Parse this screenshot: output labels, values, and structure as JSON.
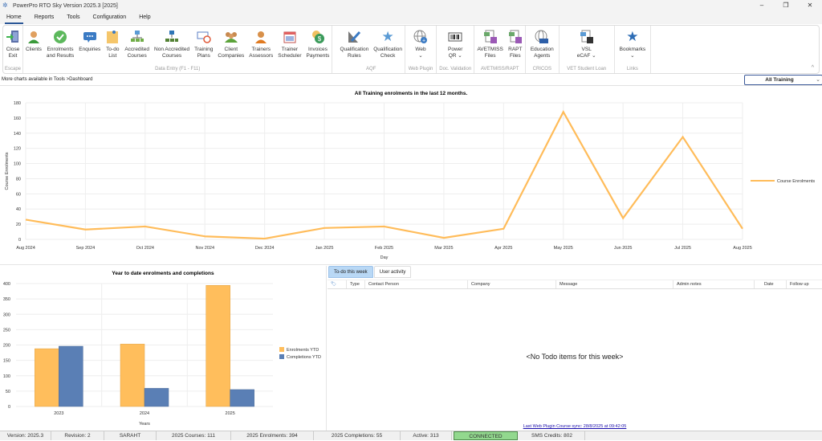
{
  "window": {
    "title": "PowerPro RTO Sky Version 2025.3 [2025]",
    "controls": [
      "–",
      "❐",
      "✕"
    ]
  },
  "menu": [
    {
      "label": "Home",
      "active": true
    },
    {
      "label": "Reports"
    },
    {
      "label": "Tools"
    },
    {
      "label": "Configuration"
    },
    {
      "label": "Help"
    }
  ],
  "ribbon": {
    "groups": [
      {
        "label": "Escape",
        "buttons": [
          {
            "label": "Close\nExit",
            "icon": "exit-door-icon"
          }
        ]
      },
      {
        "label": "Data Entry (F1 - F11)",
        "buttons": [
          {
            "label": "Clients",
            "icon": "person-icon"
          },
          {
            "label": "Enrolments\nand Results",
            "icon": "checkmark-icon"
          },
          {
            "label": "Enquiries",
            "icon": "chat-bubble-icon"
          },
          {
            "label": "To-do\nList",
            "icon": "notepad-icon"
          },
          {
            "label": "Accredited\nCourses",
            "icon": "org-chart-icon"
          },
          {
            "label": "Non Accredited\nCourses",
            "icon": "org-chart-blue-icon"
          },
          {
            "label": "Training\nPlans",
            "icon": "plan-clock-icon"
          },
          {
            "label": "Client\nCompanies",
            "icon": "group-people-icon"
          },
          {
            "label": "Trainers\nAssessors",
            "icon": "trainer-person-icon"
          },
          {
            "label": "Trainer\nScheduler",
            "icon": "calendar-icon"
          },
          {
            "label": "Invoices\nPayments",
            "icon": "dollar-coin-icon"
          }
        ]
      },
      {
        "label": "AQF",
        "buttons": [
          {
            "label": "Qualification\nRules",
            "icon": "ruler-pencil-icon"
          },
          {
            "label": "Qualification\nCheck",
            "icon": "star-icon"
          }
        ]
      },
      {
        "label": "Web Plugin",
        "buttons": [
          {
            "label": "Web\n⌄",
            "icon": "globe-plus-icon"
          }
        ]
      },
      {
        "label": "Doc. Validation",
        "buttons": [
          {
            "label": "Power\nQR ⌄",
            "icon": "barcode-icon"
          }
        ]
      },
      {
        "label": "AVETMISS/RAPT",
        "buttons": [
          {
            "label": "AVETMISS\nFiles",
            "icon": "file-save-icon"
          },
          {
            "label": "RAPT\nFiles",
            "icon": "file-save-icon"
          }
        ]
      },
      {
        "label": "CRICOS",
        "buttons": [
          {
            "label": "Education\nAgents",
            "icon": "globe-abc-icon"
          }
        ]
      },
      {
        "label": "VET Student Loan",
        "buttons": [
          {
            "label": "VSL\neCAF ⌄",
            "icon": "file-disk-icon"
          }
        ]
      },
      {
        "label": "Links",
        "buttons": [
          {
            "label": "Bookmarks\n⌄",
            "icon": "star-bookmark-icon"
          }
        ]
      }
    ]
  },
  "info": {
    "text": "More charts available in Tools >Dashboard",
    "filter_value": "All Training"
  },
  "colors": {
    "line": "#ffbc5a",
    "enrolments": "#ffbe5c",
    "completions": "#5a7fb5",
    "connected": "#92d88e",
    "link": "#1a0dab"
  },
  "chart_data": [
    {
      "type": "line",
      "title": "All Training enrolments in the last 12 months.",
      "xlabel": "Day",
      "ylabel": "Course Enrolments",
      "ylim": [
        0,
        180
      ],
      "yticks": [
        0,
        20,
        40,
        60,
        80,
        100,
        120,
        140,
        160,
        180
      ],
      "grid": true,
      "legend_position": "right",
      "categories": [
        "Aug 2024",
        "Sep 2024",
        "Oct 2024",
        "Nov 2024",
        "Dec 2024",
        "Jan 2025",
        "Feb 2025",
        "Mar 2025",
        "Apr 2025",
        "May 2025",
        "Jun 2025",
        "Jul 2025",
        "Aug 2025"
      ],
      "series": [
        {
          "name": "Course Enrolments",
          "values": [
            26,
            13,
            17,
            4,
            1,
            15,
            17,
            2,
            14,
            168,
            28,
            135,
            14
          ]
        }
      ]
    },
    {
      "type": "bar",
      "title": "Year to date enrolments and completions",
      "xlabel": "Years",
      "ylabel": "",
      "ylim": [
        0,
        400
      ],
      "yticks": [
        0,
        50,
        100,
        150,
        200,
        250,
        300,
        350,
        400
      ],
      "grid": true,
      "legend_position": "right",
      "categories": [
        "2023",
        "2024",
        "2025"
      ],
      "series": [
        {
          "name": "Enrolments YTD",
          "values": [
            188,
            203,
            394
          ]
        },
        {
          "name": "Completions YTD",
          "values": [
            196,
            59,
            55
          ]
        }
      ]
    }
  ],
  "todo": {
    "tabs": [
      {
        "label": "To-do this week",
        "active": true
      },
      {
        "label": "User activity"
      }
    ],
    "columns": [
      "",
      "Type",
      "Contact Person",
      "Company",
      "Message",
      "Admin notes",
      "Date",
      "Follow up"
    ],
    "empty_text": "<No Todo items for this week>",
    "sync_text": "Last Web Plugin Course sync: 28/8/2025 at 09:42:05"
  },
  "status": {
    "version": "Version: 2025.3",
    "revision": "Revision: 2",
    "user": "SARAHT",
    "courses": "2025 Courses: 111",
    "enrolments": "2025 Enrolments: 394",
    "completions": "2025 Completions: 55",
    "active": "Active: 313",
    "connection": "CONNECTED",
    "sms": "SMS Credits: 802"
  }
}
